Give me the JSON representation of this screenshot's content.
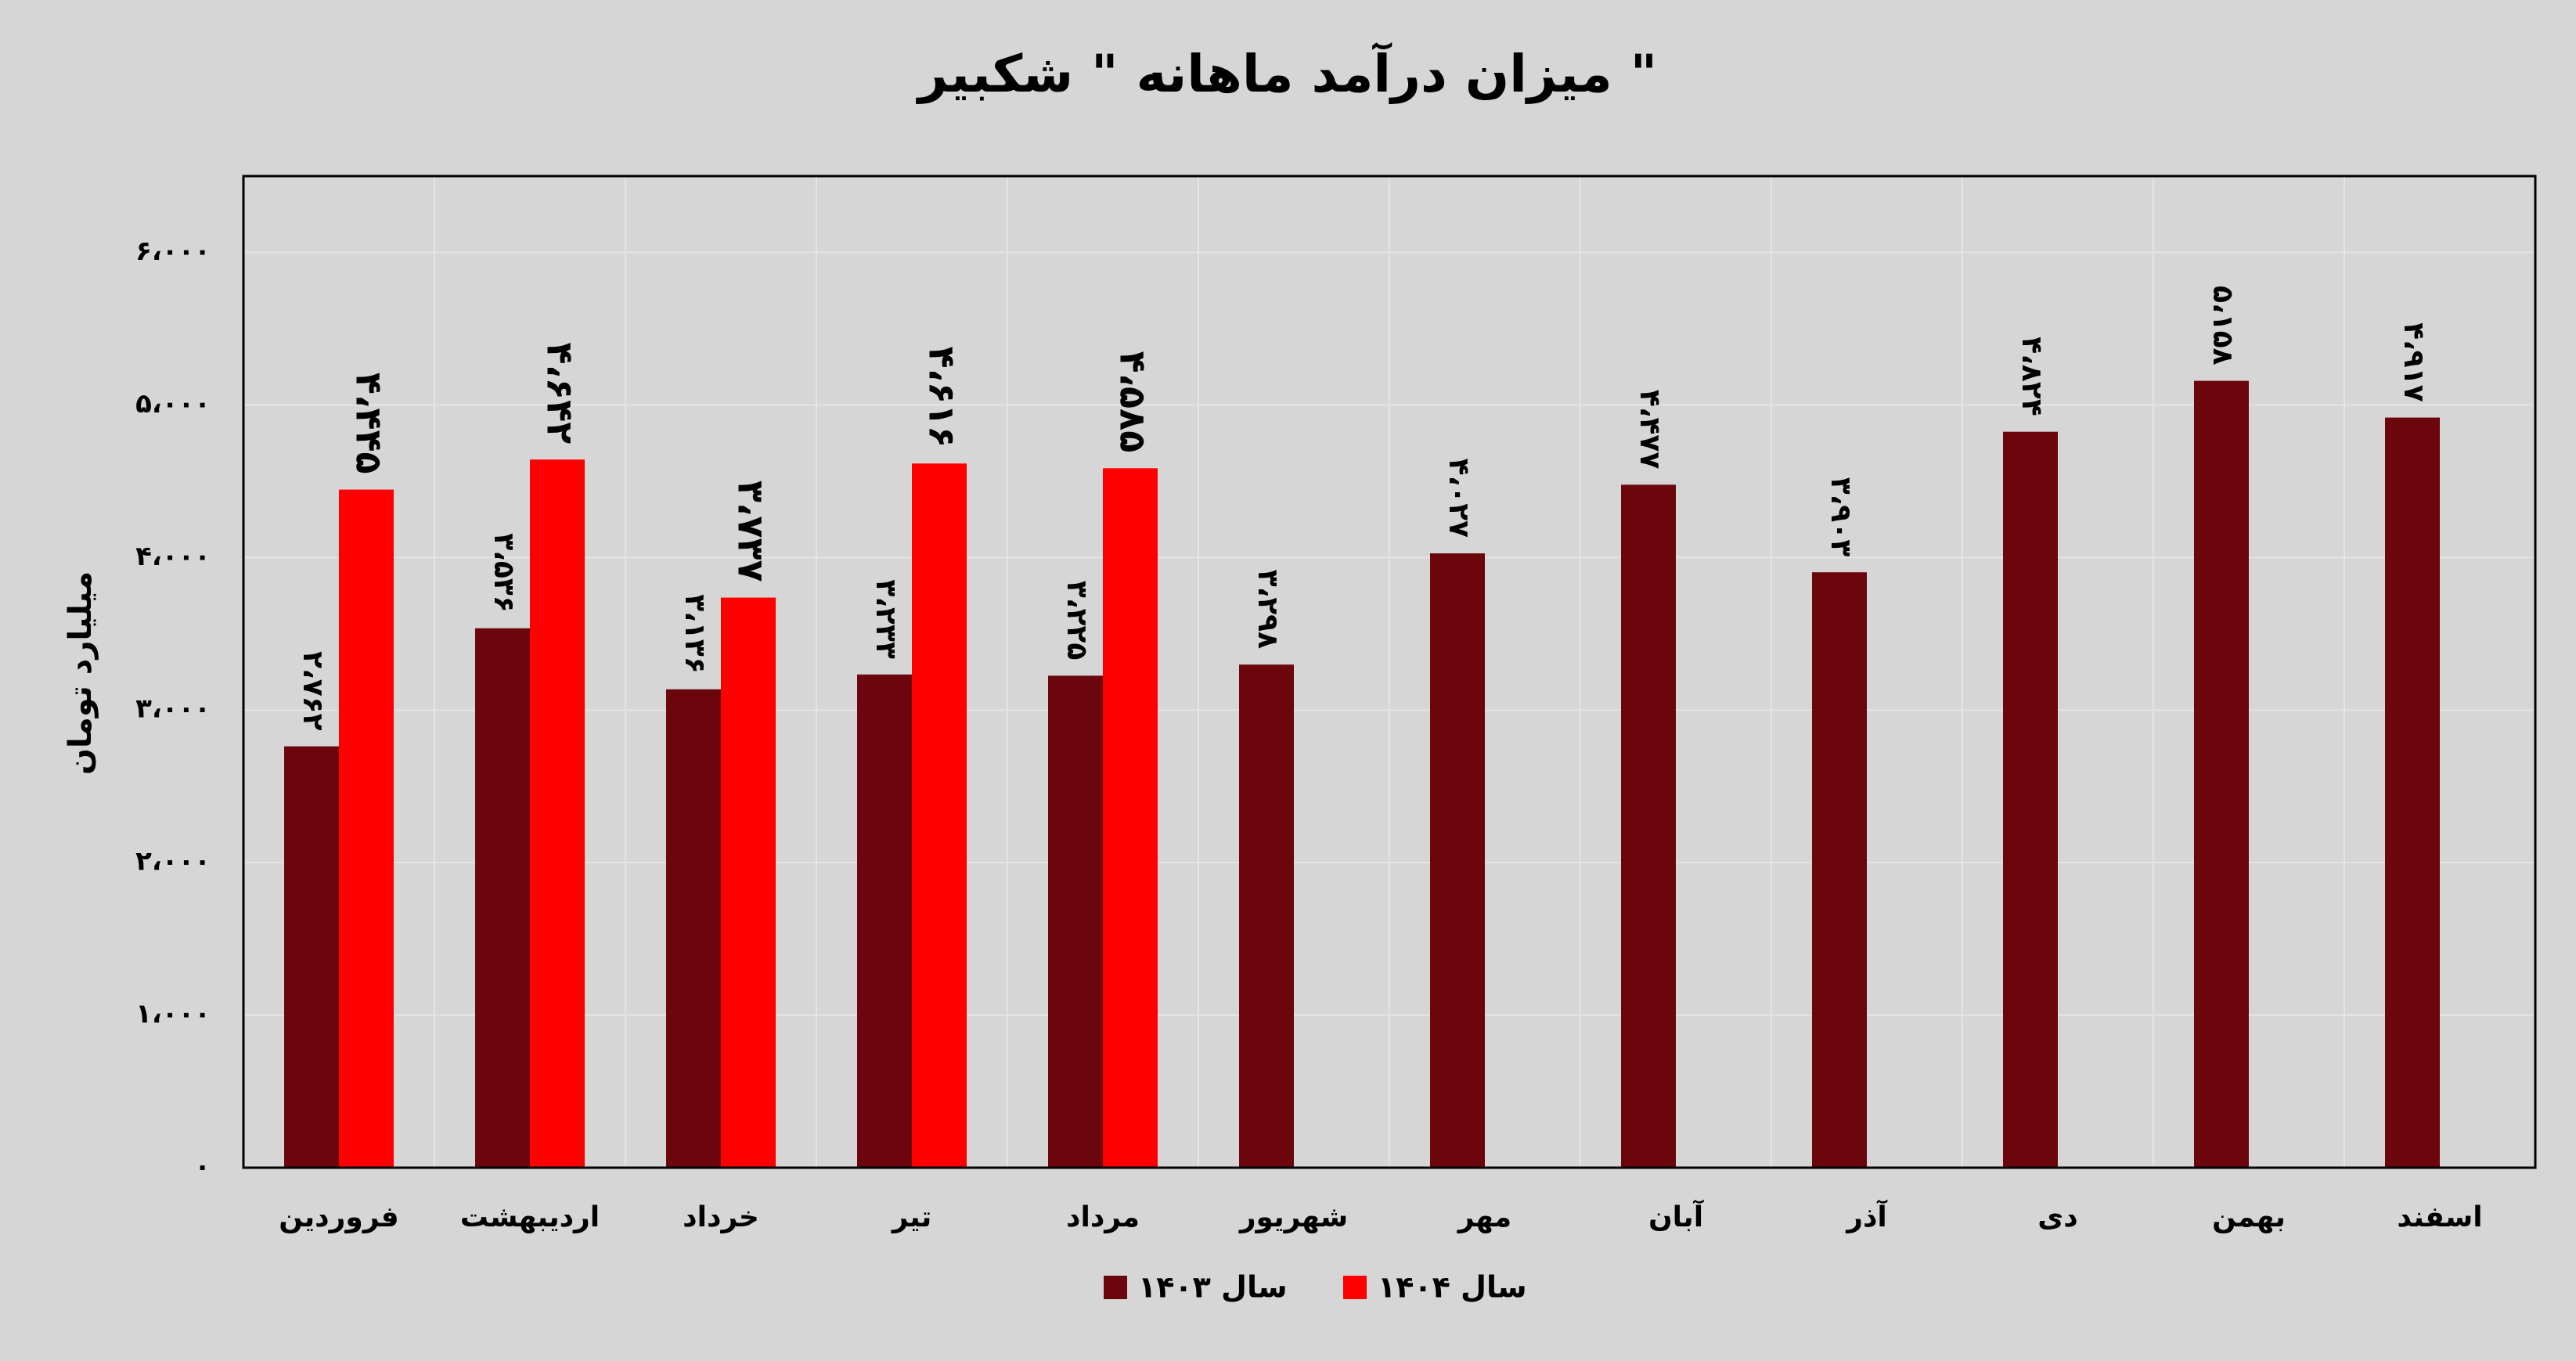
{
  "chart_data": {
    "type": "bar",
    "title": "میزان درآمد ماهانه \" شکبیر \"",
    "y_label": "میلیارد تومان",
    "categories": [
      "فروردین",
      "اردیبهشت",
      "خرداد",
      "تیر",
      "مرداد",
      "شهریور",
      "مهر",
      "آبان",
      "آذر",
      "دی",
      "بهمن",
      "اسفند"
    ],
    "series": [
      {
        "name": "سال ۱۴۰۳",
        "color": "#6b070c",
        "values": [
          2762,
          3536,
          3136,
          3233,
          3225,
          3298,
          4027,
          4477,
          3903,
          4824,
          5158,
          4917
        ],
        "value_labels": [
          "۲،۷۶۲",
          "۳،۵۳۶",
          "۳،۱۳۶",
          "۳،۲۳۳",
          "۳،۲۲۵",
          "۳،۲۹۸",
          "۴،۰۲۷",
          "۴،۴۷۷",
          "۳،۹۰۳",
          "۴،۸۲۴",
          "۵،۱۵۸",
          "۴،۹۱۷"
        ]
      },
      {
        "name": "سال ۱۴۰۴",
        "color": "#ff0000",
        "values": [
          4445,
          4642,
          3737,
          4616,
          4585,
          null,
          null,
          null,
          null,
          null,
          null,
          null
        ],
        "value_labels": [
          "۴،۴۴۵",
          "۴،۶۴۲",
          "۳،۷۳۷",
          "۴،۶۱۶",
          "۴،۵۸۵",
          null,
          null,
          null,
          null,
          null,
          null,
          null
        ]
      }
    ],
    "ylim": [
      0,
      6500
    ],
    "yticks": [
      {
        "value": 0,
        "label": "۰"
      },
      {
        "value": 1000,
        "label": "۱،۰۰۰"
      },
      {
        "value": 2000,
        "label": "۲،۰۰۰"
      },
      {
        "value": 3000,
        "label": "۳،۰۰۰"
      },
      {
        "value": 4000,
        "label": "۴،۰۰۰"
      },
      {
        "value": 5000,
        "label": "۵،۰۰۰"
      },
      {
        "value": 6000,
        "label": "۶،۰۰۰"
      }
    ],
    "grid": true
  }
}
